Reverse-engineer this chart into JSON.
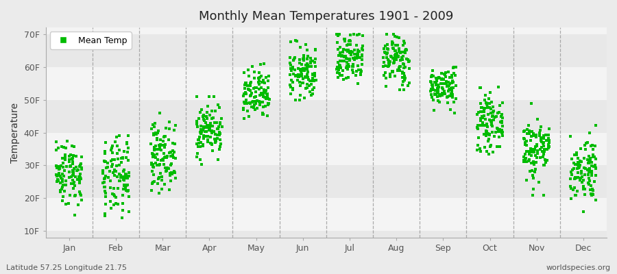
{
  "title": "Monthly Mean Temperatures 1901 - 2009",
  "ylabel": "Temperature",
  "xlabel_bottom_left": "Latitude 57.25 Longitude 21.75",
  "xlabel_bottom_right": "worldspecies.org",
  "legend_label": "Mean Temp",
  "marker_color": "#00BB00",
  "background_color": "#EBEBEB",
  "plot_bg_color": "#F4F4F4",
  "band_color_light": "#F4F4F4",
  "band_color_dark": "#E8E8E8",
  "yticks": [
    10,
    20,
    30,
    40,
    50,
    60,
    70
  ],
  "ytick_labels": [
    "10F",
    "20F",
    "30F",
    "40F",
    "50F",
    "60F",
    "70F"
  ],
  "ylim": [
    8,
    72
  ],
  "months": [
    "Jan",
    "Feb",
    "Mar",
    "Apr",
    "May",
    "Jun",
    "Jul",
    "Aug",
    "Sep",
    "Oct",
    "Nov",
    "Dec"
  ],
  "month_positions": [
    1,
    2,
    3,
    4,
    5,
    6,
    7,
    8,
    9,
    10,
    11,
    12
  ],
  "dashed_line_positions": [
    1.5,
    2.5,
    3.5,
    4.5,
    5.5,
    6.5,
    7.5,
    8.5,
    9.5,
    10.5,
    11.5
  ],
  "num_years": 109,
  "seed": 42,
  "monthly_mean_temps": [
    28,
    26,
    33,
    41,
    51,
    58,
    63,
    62,
    54,
    43,
    35,
    29
  ],
  "monthly_std_temps": [
    5,
    6,
    5,
    4,
    4,
    4,
    4,
    4,
    3,
    4,
    5,
    5
  ],
  "monthly_min_temps": [
    10,
    10,
    19,
    30,
    42,
    50,
    55,
    53,
    46,
    31,
    21,
    16
  ],
  "monthly_max_temps": [
    39,
    39,
    46,
    51,
    61,
    68,
    70,
    70,
    60,
    54,
    49,
    44
  ]
}
